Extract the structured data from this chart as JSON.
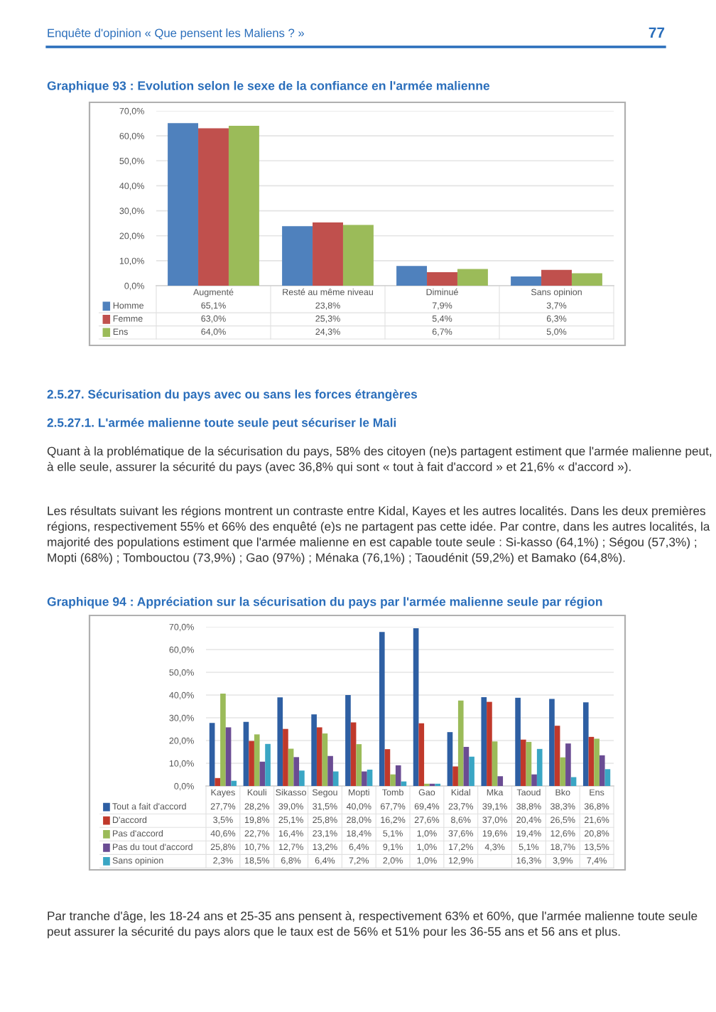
{
  "chart_data": [
    {
      "type": "bar",
      "title": "Graphique 93 : Evolution selon le sexe de la confiance en l'armée malienne",
      "annotations": [
        "Enquête d'opinion « Que pensent les Maliens ? »",
        "77"
      ],
      "categories": [
        "Augmenté",
        "Resté au même niveau",
        "Diminué",
        "Sans opinion"
      ],
      "series": [
        {
          "name": "Homme",
          "color": "#4f81bd",
          "values": [
            65.1,
            23.8,
            7.9,
            3.7
          ],
          "value_labels": [
            "65,1%",
            "23,8%",
            "7,9%",
            "3,7%"
          ]
        },
        {
          "name": "Femme",
          "color": "#c0504d",
          "values": [
            63.0,
            25.3,
            5.4,
            6.3
          ],
          "value_labels": [
            "63,0%",
            "25,3%",
            "5,4%",
            "6,3%"
          ]
        },
        {
          "name": "Ens",
          "color": "#9bbb59",
          "values": [
            64.0,
            24.3,
            6.7,
            5.0
          ],
          "value_labels": [
            "64,0%",
            "24,3%",
            "6,7%",
            "5,0%"
          ]
        }
      ],
      "ylim": [
        0,
        70
      ],
      "yticks": [
        {
          "value": 0,
          "label": "0,0%"
        },
        {
          "value": 10,
          "label": "10,0%"
        },
        {
          "value": 20,
          "label": "20,0%"
        },
        {
          "value": 30,
          "label": "30,0%"
        },
        {
          "value": 40,
          "label": "40,0%"
        },
        {
          "value": 50,
          "label": "50,0%"
        },
        {
          "value": 60,
          "label": "60,0%"
        },
        {
          "value": 70,
          "label": "70,0%"
        }
      ],
      "grid": "y",
      "legend": "bottom"
    },
    {
      "type": "bar",
      "title": "Graphique 94 : Appréciation sur la sécurisation du pays par l'armée malienne seule par région",
      "annotations": [
        "2.5.27. Sécurisation du pays avec ou sans les forces étrangères",
        "2.5.27.1. L'armée malienne toute seule peut sécuriser le Mali",
        "Quant à la problématique de la sécurisation du pays, 58% des citoyen (ne)s partagent estiment que l'armée malienne peut, à elle seule, assurer la sécurité du pays (avec 36,8% qui sont « tout à fait d'accord » et 21,6% « d'accord »).",
        "Les résultats suivant les régions montrent un contraste entre Kidal, Kayes et les autres localités. Dans les deux premières régions, respectivement 55% et 66% des enquêté (e)s ne partagent pas cette idée. Par contre, dans les autres localités, la majorité des populations estiment que l'armée malienne en est capable toute seule : Si-kasso (64,1%) ; Ségou (57,3%) ; Mopti (68%) ; Tombouctou (73,9%) ; Gao (97%) ; Ménaka (76,1%) ; Taoudénit (59,2%) et Bamako (64,8%).",
        "Par tranche d'âge, les 18-24 ans et 25-35 ans pensent à, respectivement 63% et 60%, que l'armée malienne toute seule peut assurer la sécurité du pays alors que le taux est de 56% et 51% pour les 36-55 ans et 56 ans et plus."
      ],
      "categories": [
        "Kayes",
        "Kouli",
        "Sikasso",
        "Segou",
        "Mopti",
        "Tomb",
        "Gao",
        "Kidal",
        "Mka",
        "Taoud",
        "Bko",
        "Ens"
      ],
      "series": [
        {
          "name": "Tout a fait d'accord",
          "color": "#2e5fa3",
          "values": [
            27.7,
            28.2,
            39.0,
            31.5,
            40.0,
            67.7,
            69.4,
            23.7,
            39.1,
            38.8,
            38.3,
            36.8
          ],
          "value_labels": [
            "27,7%",
            "28,2%",
            "39,0%",
            "31,5%",
            "40,0%",
            "67,7%",
            "69,4%",
            "23,7%",
            "39,1%",
            "38,8%",
            "38,3%",
            "36,8%"
          ]
        },
        {
          "name": "D'accord",
          "color": "#c0392b",
          "values": [
            3.5,
            19.8,
            25.1,
            25.8,
            28.0,
            16.2,
            27.6,
            8.6,
            37.0,
            20.4,
            26.5,
            21.6
          ],
          "value_labels": [
            "3,5%",
            "19,8%",
            "25,1%",
            "25,8%",
            "28,0%",
            "16,2%",
            "27,6%",
            "8,6%",
            "37,0%",
            "20,4%",
            "26,5%",
            "21,6%"
          ]
        },
        {
          "name": "Pas d'accord",
          "color": "#9bbb59",
          "values": [
            40.6,
            22.7,
            16.4,
            23.1,
            18.4,
            5.1,
            1.0,
            37.6,
            19.6,
            19.4,
            12.6,
            20.8
          ],
          "value_labels": [
            "40,6%",
            "22,7%",
            "16,4%",
            "23,1%",
            "18,4%",
            "5,1%",
            "1,0%",
            "37,6%",
            "19,6%",
            "19,4%",
            "12,6%",
            "20,8%"
          ]
        },
        {
          "name": "Pas du tout d'accord",
          "color": "#6a4c93",
          "values": [
            25.8,
            10.7,
            12.7,
            13.2,
            6.4,
            9.1,
            1.0,
            17.2,
            4.3,
            5.1,
            18.7,
            13.5
          ],
          "value_labels": [
            "25,8%",
            "10,7%",
            "12,7%",
            "13,2%",
            "6,4%",
            "9,1%",
            "1,0%",
            "17,2%",
            "4,3%",
            "5,1%",
            "18,7%",
            "13,5%"
          ]
        },
        {
          "name": "Sans opinion",
          "color": "#3aa6c4",
          "values": [
            2.3,
            18.5,
            6.8,
            6.4,
            7.2,
            2.0,
            1.0,
            12.9,
            null,
            16.3,
            3.9,
            7.4
          ],
          "value_labels": [
            "2,3%",
            "18,5%",
            "6,8%",
            "6,4%",
            "7,2%",
            "2,0%",
            "1,0%",
            "12,9%",
            null,
            "16,3%",
            "3,9%",
            "7,4%"
          ]
        }
      ],
      "ylim": [
        0,
        70
      ],
      "yticks": [
        {
          "value": 0,
          "label": "0,0%"
        },
        {
          "value": 10,
          "label": "10,0%"
        },
        {
          "value": 20,
          "label": "20,0%"
        },
        {
          "value": 30,
          "label": "30,0%"
        },
        {
          "value": 40,
          "label": "40,0%"
        },
        {
          "value": 50,
          "label": "50,0%"
        },
        {
          "value": 60,
          "label": "60,0%"
        },
        {
          "value": 70,
          "label": "70,0%"
        }
      ],
      "grid": "y",
      "legend": "bottom"
    }
  ]
}
